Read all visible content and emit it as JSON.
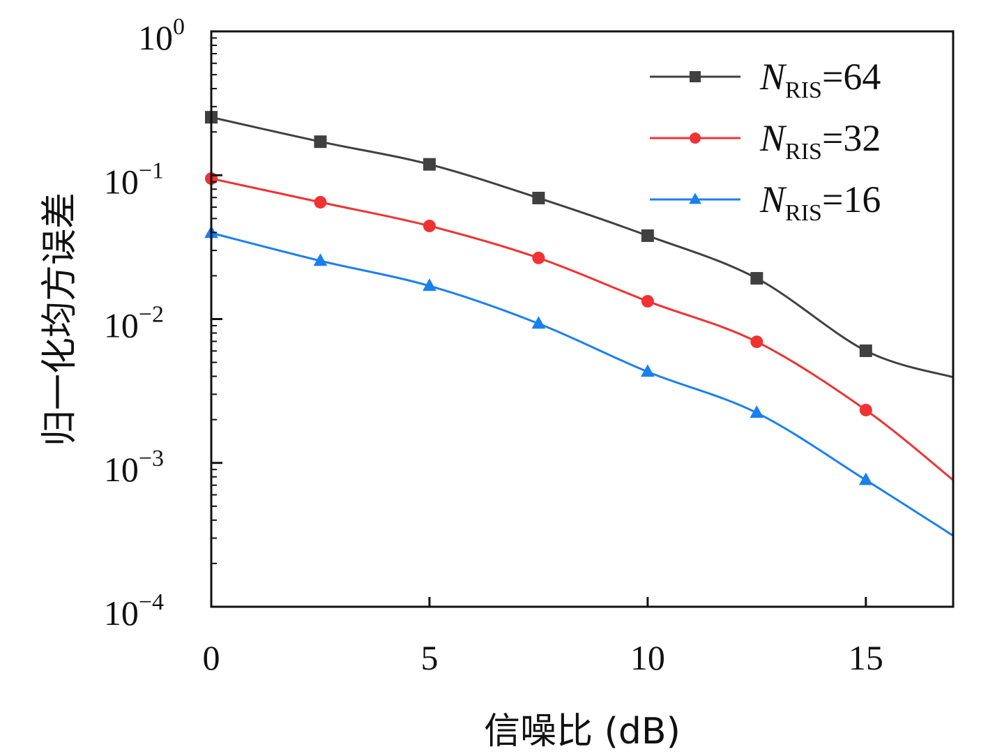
{
  "chart_data": {
    "type": "line",
    "title": "",
    "xlabel": "信噪比 (dB)",
    "ylabel": "归一化均方误差",
    "xlim": [
      0,
      17
    ],
    "ylim": [
      0.0001,
      1
    ],
    "yscale": "log",
    "xticks": [
      0,
      5,
      10,
      15
    ],
    "xtick_labels": [
      "0",
      "5",
      "10",
      "15"
    ],
    "yticks": [
      1,
      0.1,
      0.01,
      0.001,
      0.0001
    ],
    "ytick_labels": [
      {
        "base": "10",
        "exp": "0"
      },
      {
        "base": "10",
        "exp": "−1"
      },
      {
        "base": "10",
        "exp": "−2"
      },
      {
        "base": "10",
        "exp": "−3"
      },
      {
        "base": "10",
        "exp": "−4"
      }
    ],
    "grid": false,
    "legend_position": "top-right",
    "x": [
      0,
      2.5,
      5,
      7.5,
      10,
      12.5,
      15,
      17
    ],
    "series": [
      {
        "name": "N_RIS=64",
        "label_main": "N",
        "label_sub": "RIS",
        "label_rest": "=64",
        "color": "#404040",
        "marker": "square",
        "values": [
          0.253,
          0.171,
          0.119,
          0.0694,
          0.038,
          0.0192,
          0.00602,
          0.00394
        ]
      },
      {
        "name": "N_RIS=32",
        "label_main": "N",
        "label_sub": "RIS",
        "label_rest": "=32",
        "color": "#f03232",
        "marker": "circle",
        "values": [
          0.0948,
          0.0649,
          0.0444,
          0.0266,
          0.0133,
          0.00695,
          0.00233,
          0.00076
        ]
      },
      {
        "name": "N_RIS=16",
        "label_main": "N",
        "label_sub": "RIS",
        "label_rest": "=16",
        "color": "#1a80f0",
        "marker": "triangle",
        "values": [
          0.0397,
          0.0254,
          0.017,
          0.0093,
          0.0043,
          0.00223,
          0.00076,
          0.000312
        ]
      }
    ]
  }
}
